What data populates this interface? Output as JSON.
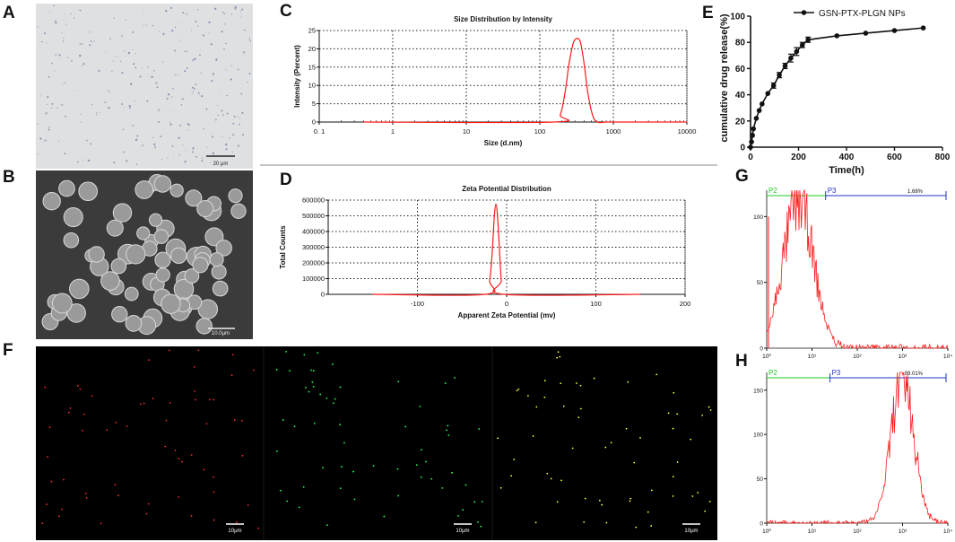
{
  "panel_letters": {
    "a": "A",
    "b": "B",
    "c": "C",
    "d": "D",
    "e": "E",
    "f": "F",
    "g": "G",
    "h": "H"
  },
  "panel_a": {
    "scale_bar": "20 μm"
  },
  "panel_b": {
    "scale_bar": "10.0μm"
  },
  "panel_f": {
    "scale_bar": "10μm"
  },
  "colors": {
    "red_line": "#ff1a1a",
    "green_gate": "#22cc22",
    "blue_gate": "#2233cc",
    "black": "#111111"
  },
  "chart_data": [
    {
      "id": "C",
      "type": "line",
      "title": "Size Distribution by Intensity",
      "xlabel": "Size (d.nm)",
      "ylabel": "Intensity (Percent)",
      "xscale": "log",
      "xlim": [
        0.1,
        10000
      ],
      "ylim": [
        0,
        25
      ],
      "xticks": [
        0.1,
        1,
        10,
        100,
        1000,
        10000
      ],
      "xtick_labels": [
        "0. 1",
        "1",
        "10",
        "100",
        "1000",
        "10000"
      ],
      "yticks": [
        0,
        5,
        10,
        15,
        20,
        25
      ],
      "grid": true,
      "series": [
        {
          "x": [
            0.4,
            150,
            190,
            220,
            250,
            280,
            300,
            330,
            360,
            400,
            450,
            520,
            600,
            800,
            1000,
            10000
          ],
          "y": [
            0,
            0,
            2,
            8,
            16,
            21,
            22.5,
            22.8,
            21.5,
            16,
            8,
            2,
            0,
            0,
            0,
            0
          ]
        }
      ]
    },
    {
      "id": "D",
      "type": "line",
      "title": "Zeta Potential Distribution",
      "xlabel": "Apparent Zeta Potential (mv)",
      "ylabel": "Total Counts",
      "xlim": [
        -200,
        200
      ],
      "ylim": [
        0,
        600000
      ],
      "xticks": [
        -100,
        0,
        100,
        200
      ],
      "xtick_labels": [
        "-100",
        "0",
        "100",
        "200"
      ],
      "yticks": [
        0,
        100000,
        200000,
        300000,
        400000,
        500000,
        600000
      ],
      "grid": true,
      "series": [
        {
          "x": [
            -150,
            -24,
            -19,
            -16,
            -14,
            -12,
            -10,
            -8,
            -6,
            -3,
            150
          ],
          "y": [
            0,
            0,
            90000,
            280000,
            480000,
            575000,
            480000,
            280000,
            90000,
            0,
            0
          ]
        }
      ]
    },
    {
      "id": "E",
      "type": "line",
      "xlabel": "Time(h)",
      "ylabel": "cumulative drug release(%)",
      "xlim": [
        0,
        800
      ],
      "ylim": [
        0,
        100
      ],
      "xticks": [
        0,
        200,
        400,
        600,
        800
      ],
      "yticks": [
        0,
        20,
        40,
        60,
        80,
        100
      ],
      "legend": "top-right",
      "grid": false,
      "series": [
        {
          "name": "GSN-PTX-PLGN NPs",
          "x": [
            0,
            4,
            8,
            12,
            24,
            36,
            48,
            72,
            96,
            120,
            144,
            168,
            192,
            216,
            240,
            360,
            480,
            600,
            720
          ],
          "y": [
            0,
            4,
            9,
            14,
            22,
            28,
            33,
            41,
            47,
            55,
            62,
            68,
            73,
            78,
            82,
            85,
            87,
            89,
            91
          ],
          "err": [
            0,
            1,
            1,
            1,
            1,
            1,
            1,
            1,
            2,
            2,
            2,
            3,
            3,
            2,
            2,
            1,
            1,
            1,
            1
          ]
        }
      ]
    },
    {
      "id": "G",
      "type": "area",
      "xscale": "log",
      "xlim": [
        1,
        10000
      ],
      "ylim": [
        0,
        120
      ],
      "xticks": [
        1,
        10,
        100,
        1000,
        10000
      ],
      "xtick_labels": [
        "10⁰",
        "10¹",
        "10²",
        "10³",
        "10⁴"
      ],
      "yticks": [
        0,
        50,
        100
      ],
      "gates": [
        {
          "name": "P2",
          "from": 1,
          "to": 20
        },
        {
          "name": "P3",
          "from": 20,
          "to": 10000,
          "percent": "1.68%"
        }
      ],
      "series": [
        {
          "peak_x": 5,
          "peak_y": 112,
          "log_sigma": 0.33
        }
      ]
    },
    {
      "id": "H",
      "type": "area",
      "xscale": "log",
      "xlim": [
        1,
        10000
      ],
      "ylim": [
        0,
        170
      ],
      "xticks": [
        1,
        10,
        100,
        1000,
        10000
      ],
      "xtick_labels": [
        "10⁰",
        "10¹",
        "10²",
        "10³",
        "10⁴"
      ],
      "yticks": [
        0,
        50,
        100,
        150
      ],
      "gates": [
        {
          "name": "P2",
          "from": 1,
          "to": 25
        },
        {
          "name": "P3",
          "from": 25,
          "to": 10000,
          "percent": "99.01%"
        }
      ],
      "series": [
        {
          "peak_x": 1000,
          "peak_y": 165,
          "log_sigma": 0.25
        }
      ]
    }
  ]
}
